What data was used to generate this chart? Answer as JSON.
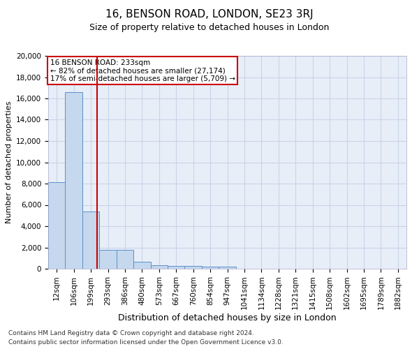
{
  "title": "16, BENSON ROAD, LONDON, SE23 3RJ",
  "subtitle": "Size of property relative to detached houses in London",
  "xlabel": "Distribution of detached houses by size in London",
  "ylabel": "Number of detached properties",
  "footnote1": "Contains HM Land Registry data © Crown copyright and database right 2024.",
  "footnote2": "Contains public sector information licensed under the Open Government Licence v3.0.",
  "annotation_line1": "16 BENSON ROAD: 233sqm",
  "annotation_line2": "← 82% of detached houses are smaller (27,174)",
  "annotation_line3": "17% of semi-detached houses are larger (5,709) →",
  "bar_color": "#c5d8ed",
  "bar_edge_color": "#5b8fc9",
  "vline_color": "#cc0000",
  "annotation_box_color": "#cc0000",
  "grid_color": "#c8d4e8",
  "background_color": "#e8eef8",
  "categories": [
    "12sqm",
    "106sqm",
    "199sqm",
    "293sqm",
    "386sqm",
    "480sqm",
    "573sqm",
    "667sqm",
    "760sqm",
    "854sqm",
    "947sqm",
    "1041sqm",
    "1134sqm",
    "1228sqm",
    "1321sqm",
    "1415sqm",
    "1508sqm",
    "1602sqm",
    "1695sqm",
    "1789sqm",
    "1882sqm"
  ],
  "values": [
    8100,
    16600,
    5350,
    1750,
    1750,
    650,
    350,
    270,
    230,
    210,
    170,
    0,
    0,
    0,
    0,
    0,
    0,
    0,
    0,
    0,
    0
  ],
  "vline_x": 2.35,
  "ylim": [
    0,
    20000
  ],
  "yticks": [
    0,
    2000,
    4000,
    6000,
    8000,
    10000,
    12000,
    14000,
    16000,
    18000,
    20000
  ],
  "title_fontsize": 11,
  "subtitle_fontsize": 9,
  "ylabel_fontsize": 8,
  "xlabel_fontsize": 9,
  "tick_fontsize": 7.5,
  "footnote_fontsize": 6.5
}
